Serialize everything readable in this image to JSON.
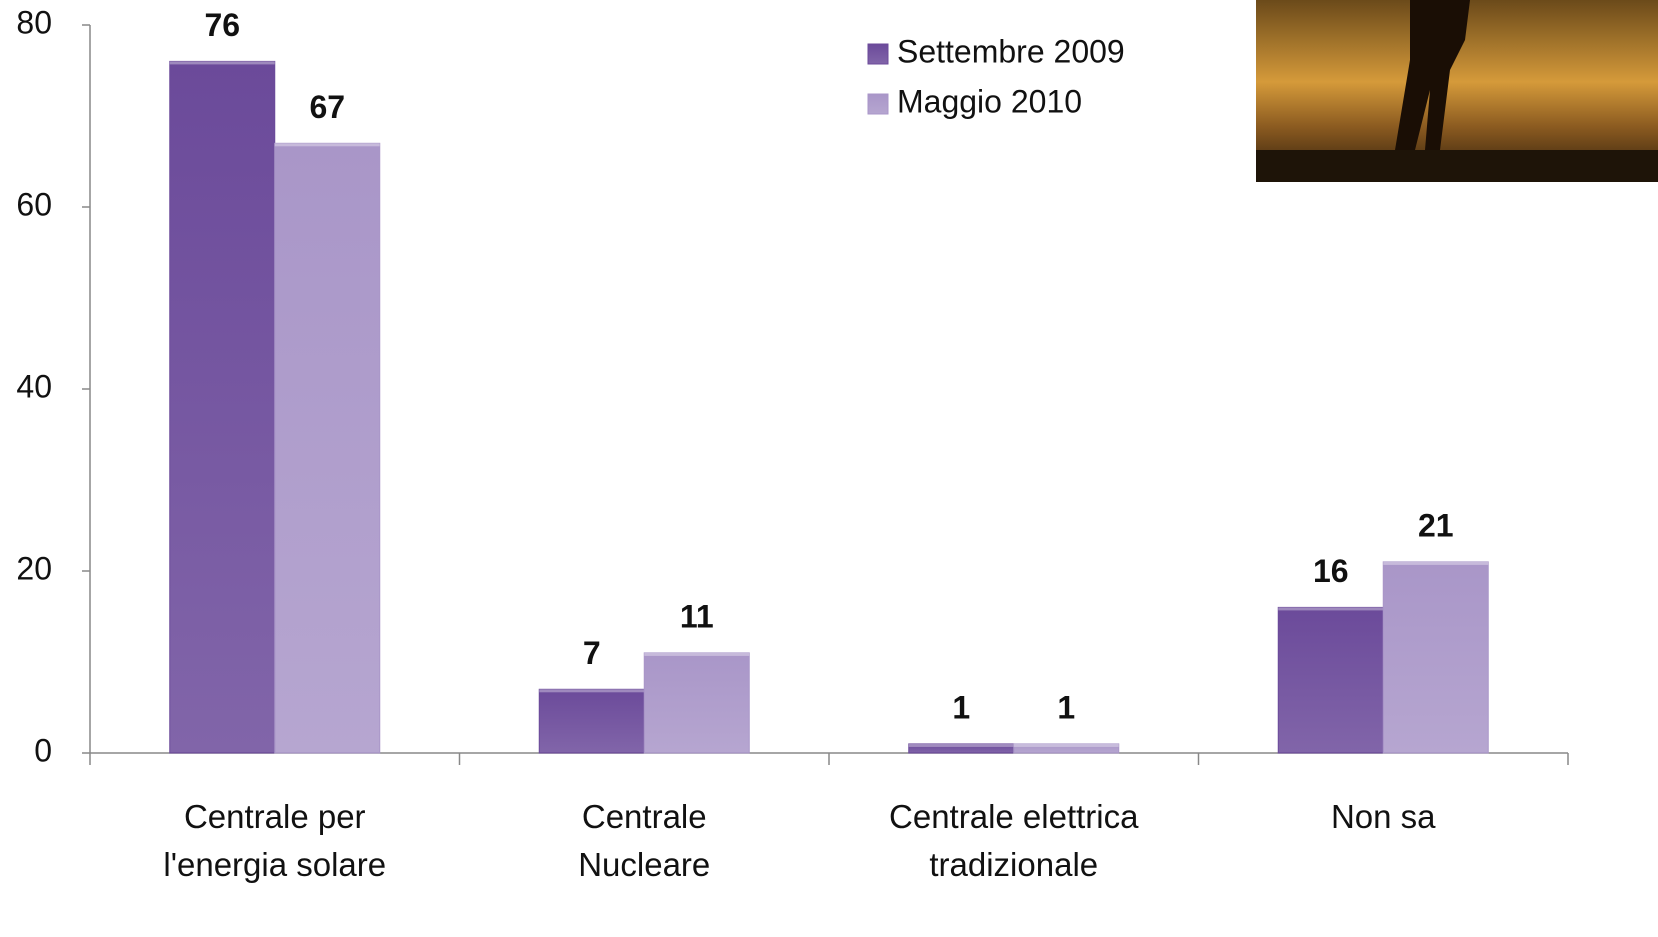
{
  "chart_data": {
    "type": "bar",
    "categories": [
      "Centrale per\nl'energia solare",
      "Centrale\nNucleare",
      "Centrale elettrica\ntradizionale",
      "Non sa"
    ],
    "series": [
      {
        "name": "Settembre 2009",
        "color": "#6b4a9a",
        "values": [
          76,
          7,
          1,
          16
        ]
      },
      {
        "name": "Maggio 2010",
        "color": "#a996c8",
        "values": [
          67,
          11,
          1,
          21
        ]
      }
    ],
    "ylim": [
      0,
      80
    ],
    "yticks": [
      0,
      20,
      40,
      60,
      80
    ],
    "grid": false,
    "legend": "top"
  }
}
